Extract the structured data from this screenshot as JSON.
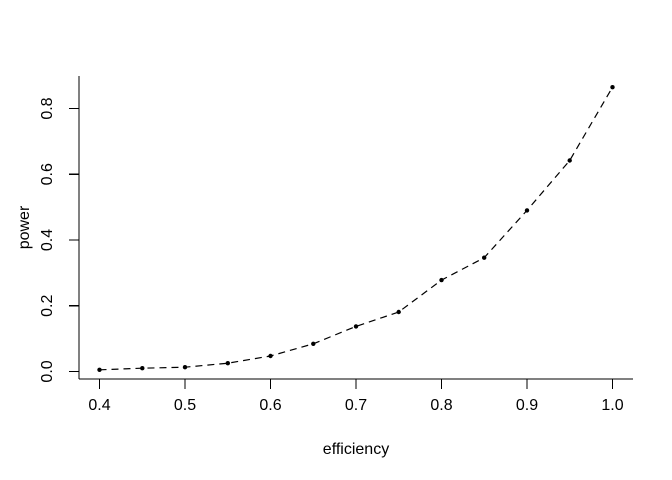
{
  "figure": {
    "background": "#ffffff",
    "foreground": "#000000"
  },
  "chart_data": {
    "type": "line",
    "title": "",
    "xlabel": "efficiency",
    "ylabel": "power",
    "x": [
      0.4,
      0.45,
      0.5,
      0.55,
      0.6,
      0.65,
      0.7,
      0.75,
      0.8,
      0.85,
      0.9,
      0.95,
      1.0
    ],
    "y": [
      0.005,
      0.01,
      0.013,
      0.025,
      0.047,
      0.084,
      0.137,
      0.181,
      0.278,
      0.346,
      0.49,
      0.642,
      0.865
    ],
    "series_name": "power",
    "xlim": [
      0.376,
      1.024
    ],
    "ylim": [
      -0.023,
      0.899
    ],
    "x_ticks": {
      "values": [
        0.4,
        0.5,
        0.6,
        0.7,
        0.8,
        0.9,
        1.0
      ],
      "labels": [
        "0.4",
        "0.5",
        "0.6",
        "0.7",
        "0.8",
        "0.9",
        "1.0"
      ]
    },
    "y_ticks": {
      "values": [
        0.0,
        0.2,
        0.4,
        0.6,
        0.8
      ],
      "labels": [
        "0.0",
        "0.2",
        "0.4",
        "0.6",
        "0.8"
      ]
    },
    "grid": false,
    "legend": "none",
    "line_style": "dashed",
    "marker": "filled-circle",
    "color": "#000000"
  }
}
